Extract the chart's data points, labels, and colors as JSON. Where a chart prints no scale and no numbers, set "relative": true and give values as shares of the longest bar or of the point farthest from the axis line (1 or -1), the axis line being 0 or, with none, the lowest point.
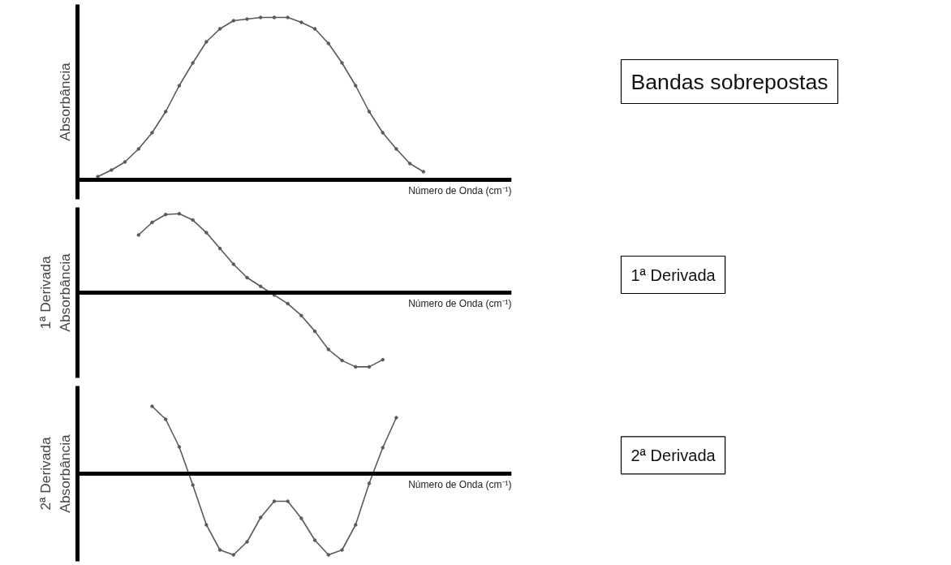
{
  "chart_data": [
    {
      "type": "line",
      "relative": true,
      "ylabel": "Absorbância",
      "xlabel": "Número de Onda (cm⁻¹)",
      "annotations": [
        "Bandas sobrepostas"
      ],
      "marker": "circle",
      "grid": false,
      "categories": [
        null,
        null,
        null,
        null,
        null,
        null,
        null,
        null,
        null,
        null,
        null,
        null,
        null,
        null,
        null,
        null,
        null,
        null,
        null,
        null,
        null,
        null,
        null,
        null,
        null,
        null,
        null,
        null,
        null,
        null,
        null,
        null
      ],
      "series": [
        {
          "color": "#5a5a5a",
          "values": [
            null,
            0.02,
            0.06,
            0.11,
            0.19,
            0.29,
            0.42,
            0.58,
            0.72,
            0.85,
            0.93,
            0.98,
            0.99,
            1.0,
            1.0,
            1.0,
            0.97,
            0.93,
            0.84,
            0.72,
            0.58,
            0.42,
            0.29,
            0.19,
            0.1,
            0.05,
            null,
            null,
            null,
            null,
            null,
            null
          ]
        }
      ]
    },
    {
      "type": "line",
      "relative": true,
      "ylabel": "1ª Derivada\nAbsorbância",
      "xlabel": "Número de Onda (cm⁻¹)",
      "annotations": [
        "1ª Derivada"
      ],
      "marker": "circle",
      "grid": false,
      "categories": [
        null,
        null,
        null,
        null,
        null,
        null,
        null,
        null,
        null,
        null,
        null,
        null,
        null,
        null,
        null,
        null,
        null,
        null,
        null,
        null,
        null,
        null,
        null,
        null,
        null,
        null,
        null,
        null,
        null,
        null,
        null,
        null
      ],
      "series": [
        {
          "color": "#5a5a5a",
          "values": [
            null,
            null,
            null,
            null,
            0.73,
            0.89,
            0.99,
            1.0,
            0.92,
            0.76,
            0.56,
            0.36,
            0.19,
            0.08,
            -0.03,
            -0.14,
            -0.29,
            -0.49,
            -0.72,
            -0.86,
            -0.94,
            -0.94,
            -0.85,
            null,
            null,
            null,
            null,
            null,
            null,
            null,
            null,
            null
          ]
        }
      ]
    },
    {
      "type": "line",
      "relative": true,
      "ylabel": "2ª Derivada\nAbsorbância",
      "xlabel": "Número de Onda (cm⁻¹)",
      "annotations": [
        "2ª Derivada"
      ],
      "marker": "circle",
      "grid": false,
      "categories": [
        null,
        null,
        null,
        null,
        null,
        null,
        null,
        null,
        null,
        null,
        null,
        null,
        null,
        null,
        null,
        null,
        null,
        null,
        null,
        null,
        null,
        null,
        null,
        null,
        null,
        null,
        null,
        null,
        null,
        null,
        null,
        null
      ],
      "series": [
        {
          "color": "#5a5a5a",
          "values": [
            null,
            null,
            null,
            null,
            null,
            0.83,
            0.67,
            0.33,
            -0.14,
            -0.63,
            -0.94,
            -1.0,
            -0.84,
            -0.54,
            -0.34,
            -0.34,
            -0.55,
            -0.82,
            -1.0,
            -0.94,
            -0.63,
            -0.12,
            0.32,
            0.69,
            null,
            null,
            null,
            null,
            null,
            null,
            null,
            null
          ]
        }
      ]
    }
  ]
}
